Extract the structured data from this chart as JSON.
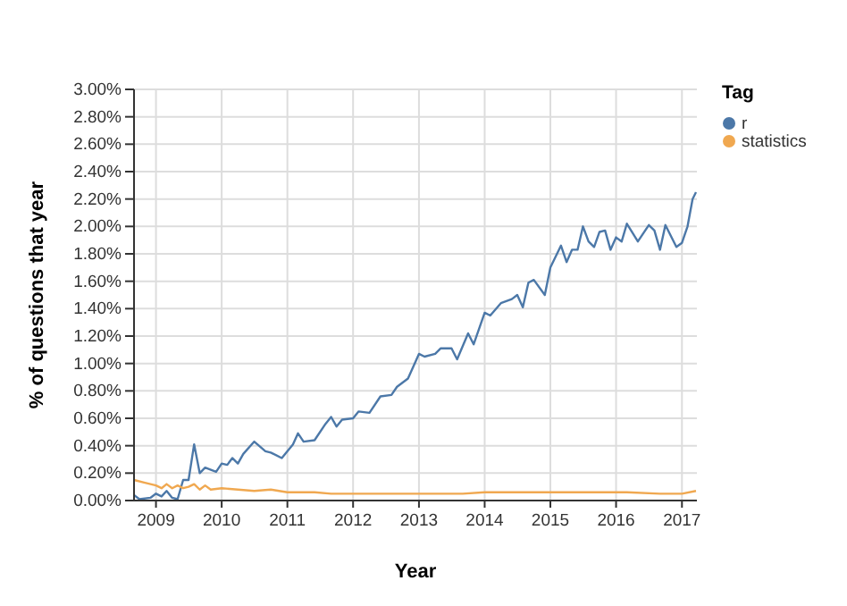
{
  "chart_data": {
    "type": "line",
    "xlabel": "Year",
    "ylabel": "% of questions that year",
    "legend_title": "Tag",
    "legend": "top right",
    "grid": true,
    "marker": "none",
    "line_style": "solid",
    "xlim": [
      "2008-09",
      "2017-03-25"
    ],
    "xticks": [
      "2009",
      "2010",
      "2011",
      "2012",
      "2013",
      "2014",
      "2015",
      "2016",
      "2017"
    ],
    "ylim": [
      0,
      3
    ],
    "yticks": [
      {
        "value": 0,
        "label": "0.00%"
      },
      {
        "value": 0.2,
        "label": "0.20%"
      },
      {
        "value": 0.4,
        "label": "0.40%"
      },
      {
        "value": 0.6,
        "label": "0.60%"
      },
      {
        "value": 0.8,
        "label": "0.80%"
      },
      {
        "value": 1,
        "label": "1.00%"
      },
      {
        "value": 1.2,
        "label": "1.20%"
      },
      {
        "value": 1.4,
        "label": "1.40%"
      },
      {
        "value": 1.6,
        "label": "1.60%"
      },
      {
        "value": 1.8,
        "label": "1.80%"
      },
      {
        "value": 2,
        "label": "2.00%"
      },
      {
        "value": 2.2,
        "label": "2.20%"
      },
      {
        "value": 2.4,
        "label": "2.40%"
      },
      {
        "value": 2.6,
        "label": "2.60%"
      },
      {
        "value": 2.8,
        "label": "2.80%"
      },
      {
        "value": 3,
        "label": "3.00%"
      }
    ],
    "series": [
      {
        "name": "r",
        "color": "#4c78a8",
        "x": [
          "2008-09",
          "2008-10",
          "2008-12",
          "2009-01",
          "2009-02",
          "2009-03",
          "2009-04",
          "2009-05",
          "2009-06",
          "2009-07",
          "2009-08",
          "2009-09",
          "2009-10",
          "2009-12",
          "2010-01",
          "2010-02",
          "2010-03",
          "2010-04",
          "2010-05",
          "2010-07",
          "2010-09",
          "2010-10",
          "2010-12",
          "2011-02",
          "2011-03",
          "2011-04",
          "2011-06",
          "2011-08",
          "2011-09",
          "2011-10",
          "2011-11",
          "2012-01",
          "2012-02",
          "2012-04",
          "2012-06",
          "2012-08",
          "2012-09",
          "2012-11",
          "2013-01",
          "2013-02",
          "2013-04",
          "2013-05",
          "2013-07",
          "2013-08",
          "2013-10",
          "2013-11",
          "2014-01",
          "2014-02",
          "2014-04",
          "2014-06",
          "2014-07",
          "2014-08",
          "2014-09",
          "2014-10",
          "2014-12",
          "2015-01",
          "2015-03",
          "2015-04",
          "2015-05",
          "2015-06",
          "2015-07",
          "2015-08",
          "2015-09",
          "2015-10",
          "2015-11",
          "2015-12",
          "2016-01",
          "2016-02",
          "2016-03",
          "2016-05",
          "2016-07",
          "2016-08",
          "2016-09",
          "2016-10",
          "2016-12",
          "2017-01",
          "2017-02",
          "2017-03-01",
          "2017-03-20"
        ],
        "values": [
          0.04,
          0.01,
          0.02,
          0.05,
          0.03,
          0.07,
          0.02,
          0.01,
          0.15,
          0.15,
          0.41,
          0.2,
          0.24,
          0.21,
          0.27,
          0.26,
          0.31,
          0.27,
          0.34,
          0.43,
          0.36,
          0.35,
          0.31,
          0.41,
          0.49,
          0.43,
          0.44,
          0.56,
          0.61,
          0.54,
          0.59,
          0.6,
          0.65,
          0.64,
          0.76,
          0.77,
          0.83,
          0.89,
          1.07,
          1.05,
          1.07,
          1.11,
          1.11,
          1.03,
          1.22,
          1.14,
          1.37,
          1.35,
          1.44,
          1.47,
          1.5,
          1.41,
          1.59,
          1.61,
          1.5,
          1.7,
          1.86,
          1.74,
          1.83,
          1.83,
          2.0,
          1.89,
          1.85,
          1.96,
          1.97,
          1.83,
          1.92,
          1.89,
          2.02,
          1.89,
          2.01,
          1.97,
          1.83,
          2.01,
          1.85,
          1.88,
          2.0,
          2.2,
          2.25
        ]
      },
      {
        "name": "statistics",
        "color": "#f0a850",
        "x": [
          "2008-09",
          "2008-11",
          "2009-01",
          "2009-02",
          "2009-03",
          "2009-04",
          "2009-05",
          "2009-06",
          "2009-07",
          "2009-08",
          "2009-09",
          "2009-10",
          "2009-11",
          "2010-01",
          "2010-04",
          "2010-07",
          "2010-10",
          "2011-01",
          "2011-06",
          "2011-09",
          "2012-03",
          "2012-09",
          "2013-03",
          "2013-09",
          "2014-01",
          "2014-09",
          "2015-03",
          "2015-09",
          "2016-03",
          "2016-09",
          "2017-01",
          "2017-03-20"
        ],
        "values": [
          0.15,
          0.13,
          0.11,
          0.09,
          0.12,
          0.09,
          0.11,
          0.09,
          0.1,
          0.12,
          0.08,
          0.11,
          0.08,
          0.09,
          0.08,
          0.07,
          0.08,
          0.06,
          0.06,
          0.05,
          0.05,
          0.05,
          0.05,
          0.05,
          0.06,
          0.06,
          0.06,
          0.06,
          0.06,
          0.05,
          0.05,
          0.07
        ]
      }
    ]
  }
}
